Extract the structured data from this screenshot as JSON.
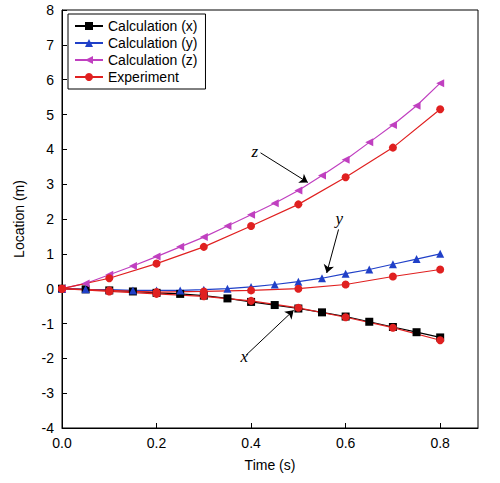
{
  "chart_data": {
    "type": "line",
    "x_label": "Time (s)",
    "y_label": "Location (m)",
    "xlim": [
      0,
      0.88
    ],
    "xticks": [
      {
        "value": 0,
        "label": "0.0"
      },
      {
        "value": 0.2,
        "label": "0.2"
      },
      {
        "value": 0.4,
        "label": "0.4"
      },
      {
        "value": 0.6,
        "label": "0.6"
      },
      {
        "value": 0.8,
        "label": "0.8"
      }
    ],
    "ylim": [
      -4,
      8
    ],
    "yticks": [
      -4,
      -3,
      -2,
      -1,
      0,
      1,
      2,
      3,
      4,
      5,
      6,
      7,
      8
    ],
    "grid": false,
    "legend": "upper left",
    "series": [
      {
        "name": "Calculation (x)",
        "color": "#000000",
        "marker": "square",
        "line_style": "solid",
        "x": [
          0,
          0.05,
          0.1,
          0.15,
          0.2,
          0.25,
          0.3,
          0.35,
          0.4,
          0.45,
          0.5,
          0.55,
          0.6,
          0.65,
          0.7,
          0.75,
          0.8
        ],
        "values": [
          0,
          -0.02,
          -0.05,
          -0.08,
          -0.12,
          -0.15,
          -0.2,
          -0.28,
          -0.38,
          -0.47,
          -0.57,
          -0.68,
          -0.8,
          -0.95,
          -1.1,
          -1.25,
          -1.4
        ]
      },
      {
        "name": "Calculation (y)",
        "color": "#2040c8",
        "marker": "triangle",
        "line_style": "solid",
        "x": [
          0,
          0.05,
          0.1,
          0.15,
          0.2,
          0.25,
          0.3,
          0.35,
          0.4,
          0.45,
          0.5,
          0.55,
          0.6,
          0.65,
          0.7,
          0.75,
          0.8
        ],
        "values": [
          0,
          -0.02,
          -0.03,
          -0.05,
          -0.05,
          -0.05,
          -0.03,
          0.0,
          0.05,
          0.12,
          0.2,
          0.3,
          0.43,
          0.55,
          0.7,
          0.85,
          1.0
        ]
      },
      {
        "name": "Calculation (z)",
        "color": "#c040c0",
        "marker": "triangle-left",
        "line_style": "solid",
        "x": [
          0,
          0.05,
          0.1,
          0.15,
          0.2,
          0.25,
          0.3,
          0.35,
          0.4,
          0.45,
          0.5,
          0.55,
          0.6,
          0.65,
          0.7,
          0.75,
          0.8
        ],
        "values": [
          0,
          0.15,
          0.4,
          0.65,
          0.92,
          1.2,
          1.48,
          1.8,
          2.12,
          2.45,
          2.82,
          3.25,
          3.7,
          4.2,
          4.7,
          5.25,
          5.9
        ]
      },
      {
        "name": "Experiment",
        "color": "#e02020",
        "marker": "circle",
        "line_style": "solid",
        "x": [
          0,
          0.1,
          0.2,
          0.3,
          0.4,
          0.5,
          0.6,
          0.7,
          0.8
        ],
        "values": [
          0,
          -0.08,
          -0.15,
          -0.22,
          -0.35,
          -0.55,
          -0.82,
          -1.12,
          -1.48
        ]
      },
      {
        "name": "Experiment",
        "color": "#e02020",
        "marker": "circle",
        "line_style": "solid",
        "x": [
          0,
          0.1,
          0.2,
          0.3,
          0.4,
          0.5,
          0.6,
          0.7,
          0.8
        ],
        "values": [
          0,
          -0.05,
          -0.1,
          -0.08,
          -0.05,
          0.0,
          0.12,
          0.35,
          0.55
        ]
      },
      {
        "name": "Experiment",
        "color": "#e02020",
        "marker": "circle",
        "line_style": "solid",
        "x": [
          0,
          0.1,
          0.2,
          0.3,
          0.4,
          0.5,
          0.6,
          0.7,
          0.8
        ],
        "values": [
          0,
          0.3,
          0.72,
          1.2,
          1.8,
          2.42,
          3.2,
          4.05,
          5.15
        ]
      }
    ],
    "annotations": [
      {
        "text": "z",
        "xy": [
          0.42,
          3.9
        ],
        "arrow_to": [
          0.52,
          3.05
        ]
      },
      {
        "text": "y",
        "xy": [
          0.585,
          1.7
        ],
        "arrow_to": [
          0.56,
          0.45
        ]
      },
      {
        "text": "x",
        "xy": [
          0.39,
          -1.9
        ],
        "arrow_to": [
          0.49,
          -0.62
        ]
      }
    ]
  }
}
